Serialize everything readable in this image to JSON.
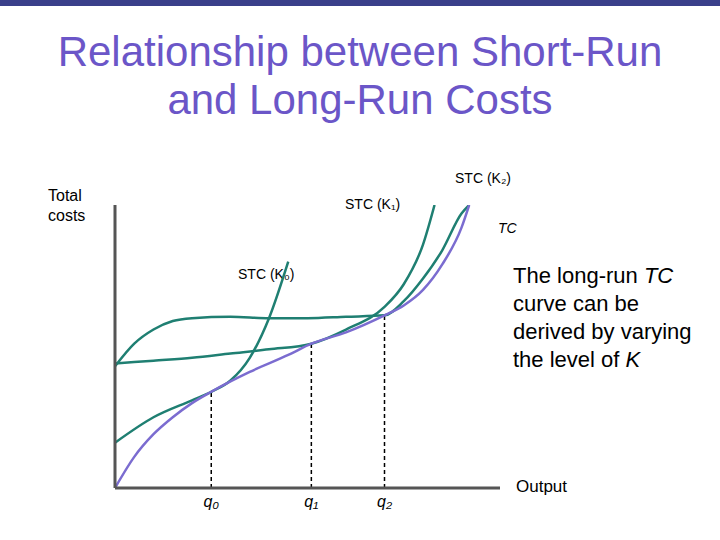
{
  "chart_data": {
    "type": "line",
    "title": "Relationship between Short-Run and Long-Run Costs",
    "y_label": "Total costs",
    "x_label": "Output",
    "annotation": "The long-run TC curve can be derived by varying the level of K",
    "xlim": [
      0,
      100
    ],
    "ylim": [
      0,
      100
    ],
    "xticks": [
      {
        "value": 25,
        "label": "q₀"
      },
      {
        "value": 51,
        "label": "q₁"
      },
      {
        "value": 70,
        "label": "q₂"
      }
    ],
    "yticks": [],
    "tick_labels": "x",
    "series": [
      {
        "name": "STC (K₀)",
        "color": "#1f7f72",
        "x": [
          0,
          10,
          20,
          25,
          30,
          35,
          40,
          45
        ],
        "values": [
          16,
          25,
          31,
          34,
          38,
          46,
          60,
          80
        ]
      },
      {
        "name": "STC (K₁)",
        "color": "#1f7f72",
        "x": [
          0,
          10,
          20,
          30,
          40,
          51,
          60,
          70,
          75,
          80,
          83
        ],
        "values": [
          44,
          45,
          46,
          47.5,
          49,
          51,
          56,
          64,
          72,
          86,
          100
        ]
      },
      {
        "name": "STC (K₂)",
        "color": "#1f7f72",
        "x": [
          0,
          5,
          10,
          15,
          20,
          30,
          40,
          50,
          60,
          70,
          75,
          80,
          85,
          90,
          92
        ],
        "values": [
          43,
          51,
          56,
          59,
          60,
          60.5,
          60,
          60,
          60.5,
          61,
          66,
          74,
          84,
          97,
          100
        ]
      },
      {
        "name": "TC",
        "color": "#7b6cd0",
        "x": [
          0,
          5,
          10,
          15,
          20,
          25,
          35,
          45,
          51,
          60,
          70,
          75,
          80,
          85,
          90,
          92
        ],
        "values": [
          0,
          11,
          19,
          25,
          30,
          34,
          41,
          47,
          51,
          55,
          61,
          64.5,
          70,
          79,
          92,
          100
        ]
      }
    ]
  }
}
